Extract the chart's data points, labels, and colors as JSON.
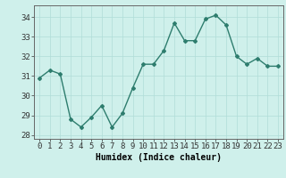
{
  "x": [
    0,
    1,
    2,
    3,
    4,
    5,
    6,
    7,
    8,
    9,
    10,
    11,
    12,
    13,
    14,
    15,
    16,
    17,
    18,
    19,
    20,
    21,
    22,
    23
  ],
  "y": [
    30.9,
    31.3,
    31.1,
    28.8,
    28.4,
    28.9,
    29.5,
    28.4,
    29.1,
    30.4,
    31.6,
    31.6,
    32.3,
    33.7,
    32.8,
    32.8,
    33.9,
    34.1,
    33.6,
    32.0,
    31.6,
    31.9,
    31.5,
    31.5
  ],
  "line_color": "#2e7d6e",
  "marker": "D",
  "marker_size": 2,
  "bg_color": "#cff0eb",
  "grid_color": "#b0ddd8",
  "xlabel": "Humidex (Indice chaleur)",
  "xlim": [
    -0.5,
    23.5
  ],
  "ylim": [
    27.8,
    34.6
  ],
  "yticks": [
    28,
    29,
    30,
    31,
    32,
    33,
    34
  ],
  "xtick_labels": [
    "0",
    "1",
    "2",
    "3",
    "4",
    "5",
    "6",
    "7",
    "8",
    "9",
    "10",
    "11",
    "12",
    "13",
    "14",
    "15",
    "16",
    "17",
    "18",
    "19",
    "20",
    "21",
    "22",
    "23"
  ],
  "xlabel_fontsize": 7,
  "tick_fontsize": 6.5,
  "line_width": 1.0
}
